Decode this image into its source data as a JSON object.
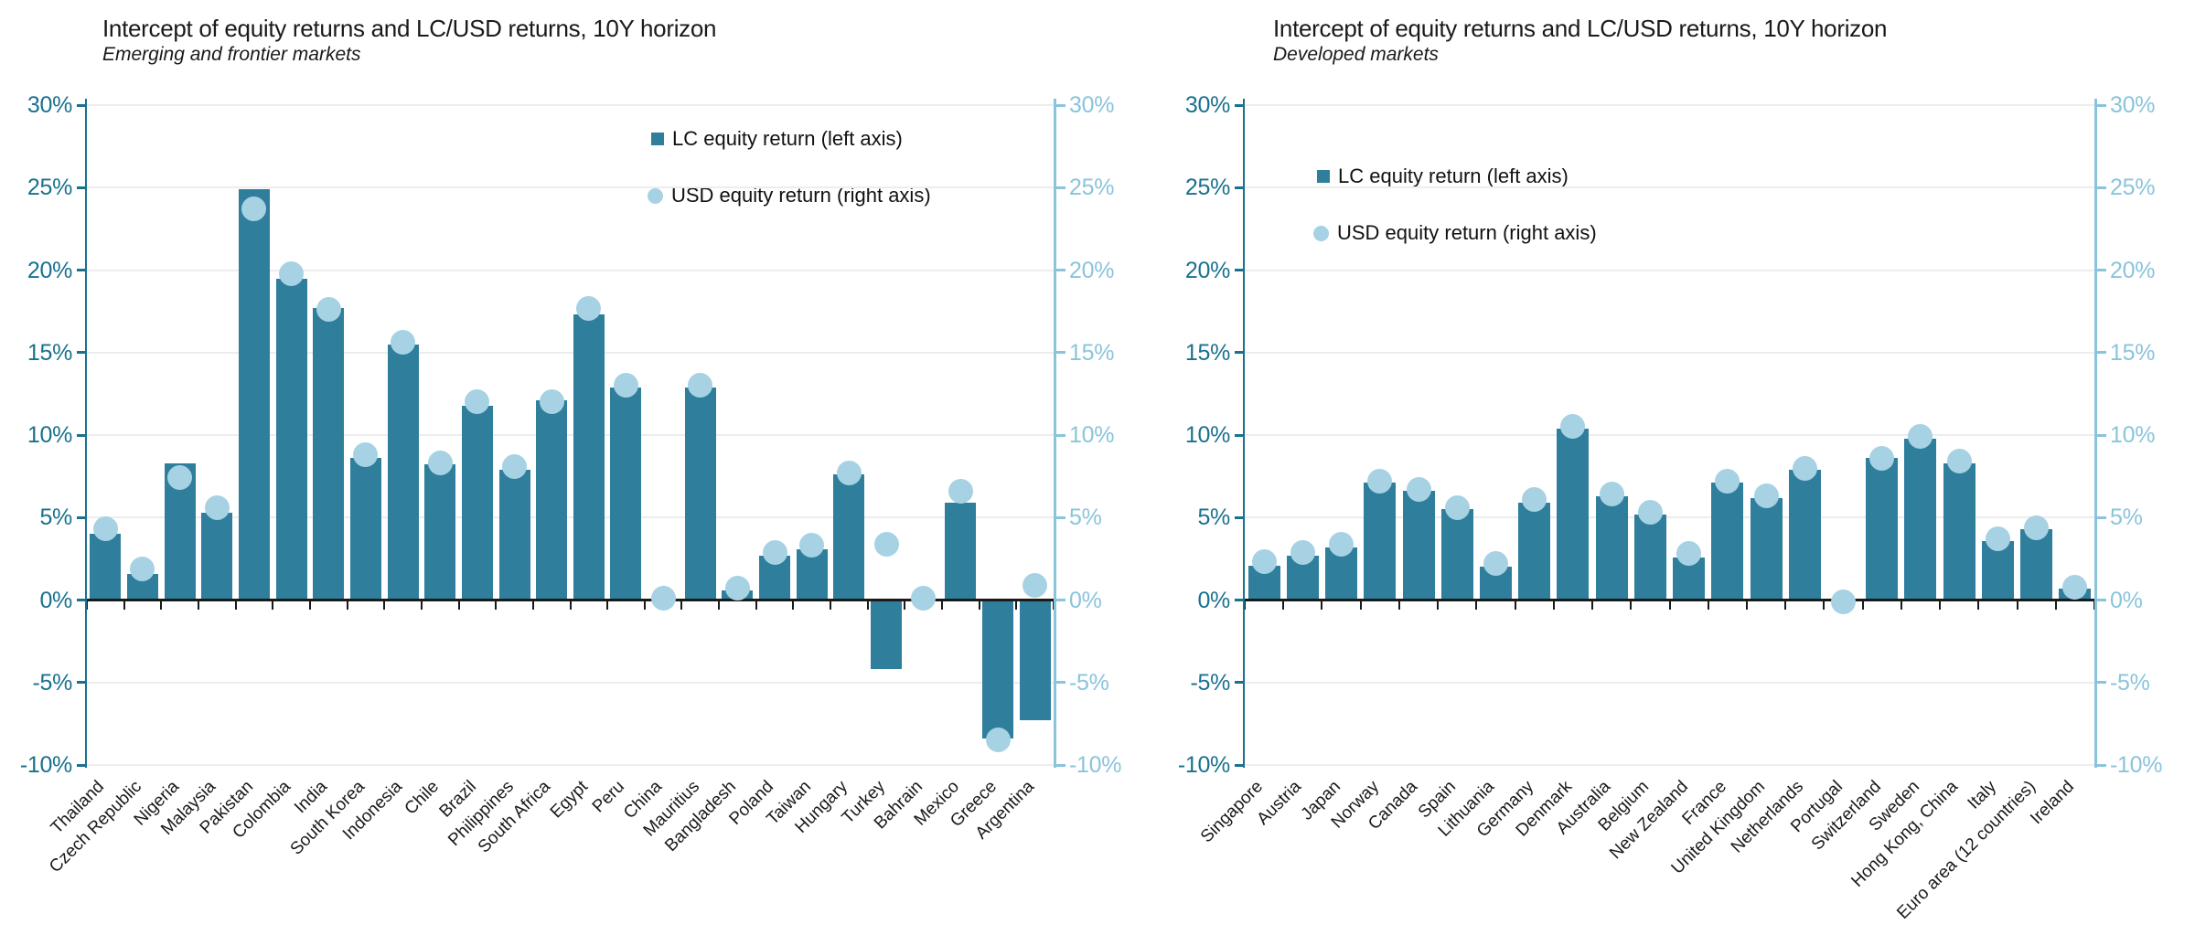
{
  "page": {
    "background": "#ffffff"
  },
  "colors": {
    "bar": "#2e7e9c",
    "dot": "#a6d2e4",
    "axis_left": "#19718f",
    "axis_right": "#8ac4dc",
    "grid": "#ededed",
    "zero_line": "#1a1a1a",
    "text": "#1a1a1a"
  },
  "chart_data": [
    {
      "type": "bar",
      "title": "Intercept of equity returns and LC/USD returns, 10Y horizon",
      "subtitle": "Emerging and frontier markets",
      "legend": {
        "lc": "LC equity return (left axis)",
        "usd": "USD equity return (right axis)"
      },
      "axis": {
        "ymax": 30,
        "ymin": -10,
        "step": 5,
        "ticks": [
          "30%",
          "25%",
          "20%",
          "15%",
          "10%",
          "5%",
          "0%",
          "-5%",
          "-10%"
        ],
        "grid": true,
        "legend_position": "top-right"
      },
      "categories": [
        "Thailand",
        "Czech Republic",
        "Nigeria",
        "Malaysia",
        "Pakistan",
        "Colombia",
        "India",
        "South Korea",
        "Indonesia",
        "Chile",
        "Brazil",
        "Philippines",
        "South Africa",
        "Egypt",
        "Peru",
        "China",
        "Mauritius",
        "Bangladesh",
        "Poland",
        "Taiwan",
        "Hungary",
        "Turkey",
        "Bahrain",
        "Mexico",
        "Greece",
        "Argentina"
      ],
      "series": [
        {
          "name": "LC equity return (left axis)",
          "type": "bar",
          "axis": "left",
          "values": [
            4.0,
            1.6,
            8.3,
            5.3,
            24.9,
            19.5,
            17.7,
            8.6,
            15.5,
            8.2,
            11.8,
            7.9,
            12.1,
            17.3,
            12.9,
            0.0,
            12.9,
            0.6,
            2.7,
            3.1,
            7.6,
            -4.2,
            0.0,
            5.9,
            -8.4,
            -7.3
          ]
        },
        {
          "name": "USD equity return (right axis)",
          "type": "scatter",
          "axis": "right",
          "values": [
            4.3,
            1.9,
            7.4,
            5.6,
            23.7,
            19.8,
            17.6,
            8.8,
            15.6,
            8.3,
            12.0,
            8.1,
            12.0,
            17.7,
            13.0,
            0.1,
            13.0,
            0.7,
            2.9,
            3.3,
            7.7,
            3.4,
            0.1,
            6.6,
            -8.5,
            0.9
          ]
        }
      ]
    },
    {
      "type": "bar",
      "title": "Intercept of equity returns and LC/USD returns, 10Y horizon",
      "subtitle": "Developed markets",
      "legend": {
        "lc": "LC equity return (left axis)",
        "usd": "USD equity return (right axis)"
      },
      "axis": {
        "ymax": 30,
        "ymin": -10,
        "step": 5,
        "ticks": [
          "30%",
          "25%",
          "20%",
          "15%",
          "10%",
          "5%",
          "0%",
          "-5%",
          "-10%"
        ],
        "grid": true,
        "legend_position": "top-left-of-plot"
      },
      "categories": [
        "Singapore",
        "Austria",
        "Japan",
        "Norway",
        "Canada",
        "Spain",
        "Lithuania",
        "Germany",
        "Denmark",
        "Australia",
        "Belgium",
        "New Zealand",
        "France",
        "United Kingdom",
        "Netherlands",
        "Portugal",
        "Switzerland",
        "Sweden",
        "Hong Kong, China",
        "Italy",
        "Euro area (12 countries)",
        "Ireland"
      ],
      "series": [
        {
          "name": "LC equity return (left axis)",
          "type": "bar",
          "axis": "left",
          "values": [
            2.1,
            2.7,
            3.2,
            7.1,
            6.6,
            5.5,
            2.0,
            5.9,
            10.4,
            6.3,
            5.2,
            2.6,
            7.1,
            6.2,
            7.9,
            0.0,
            8.6,
            9.8,
            8.3,
            3.6,
            4.3,
            0.7
          ]
        },
        {
          "name": "USD equity return (right axis)",
          "type": "scatter",
          "axis": "right",
          "values": [
            2.3,
            2.9,
            3.4,
            7.2,
            6.7,
            5.6,
            2.2,
            6.1,
            10.5,
            6.4,
            5.3,
            2.8,
            7.2,
            6.3,
            8.0,
            -0.1,
            8.6,
            9.9,
            8.4,
            3.7,
            4.4,
            0.8
          ]
        }
      ]
    }
  ]
}
